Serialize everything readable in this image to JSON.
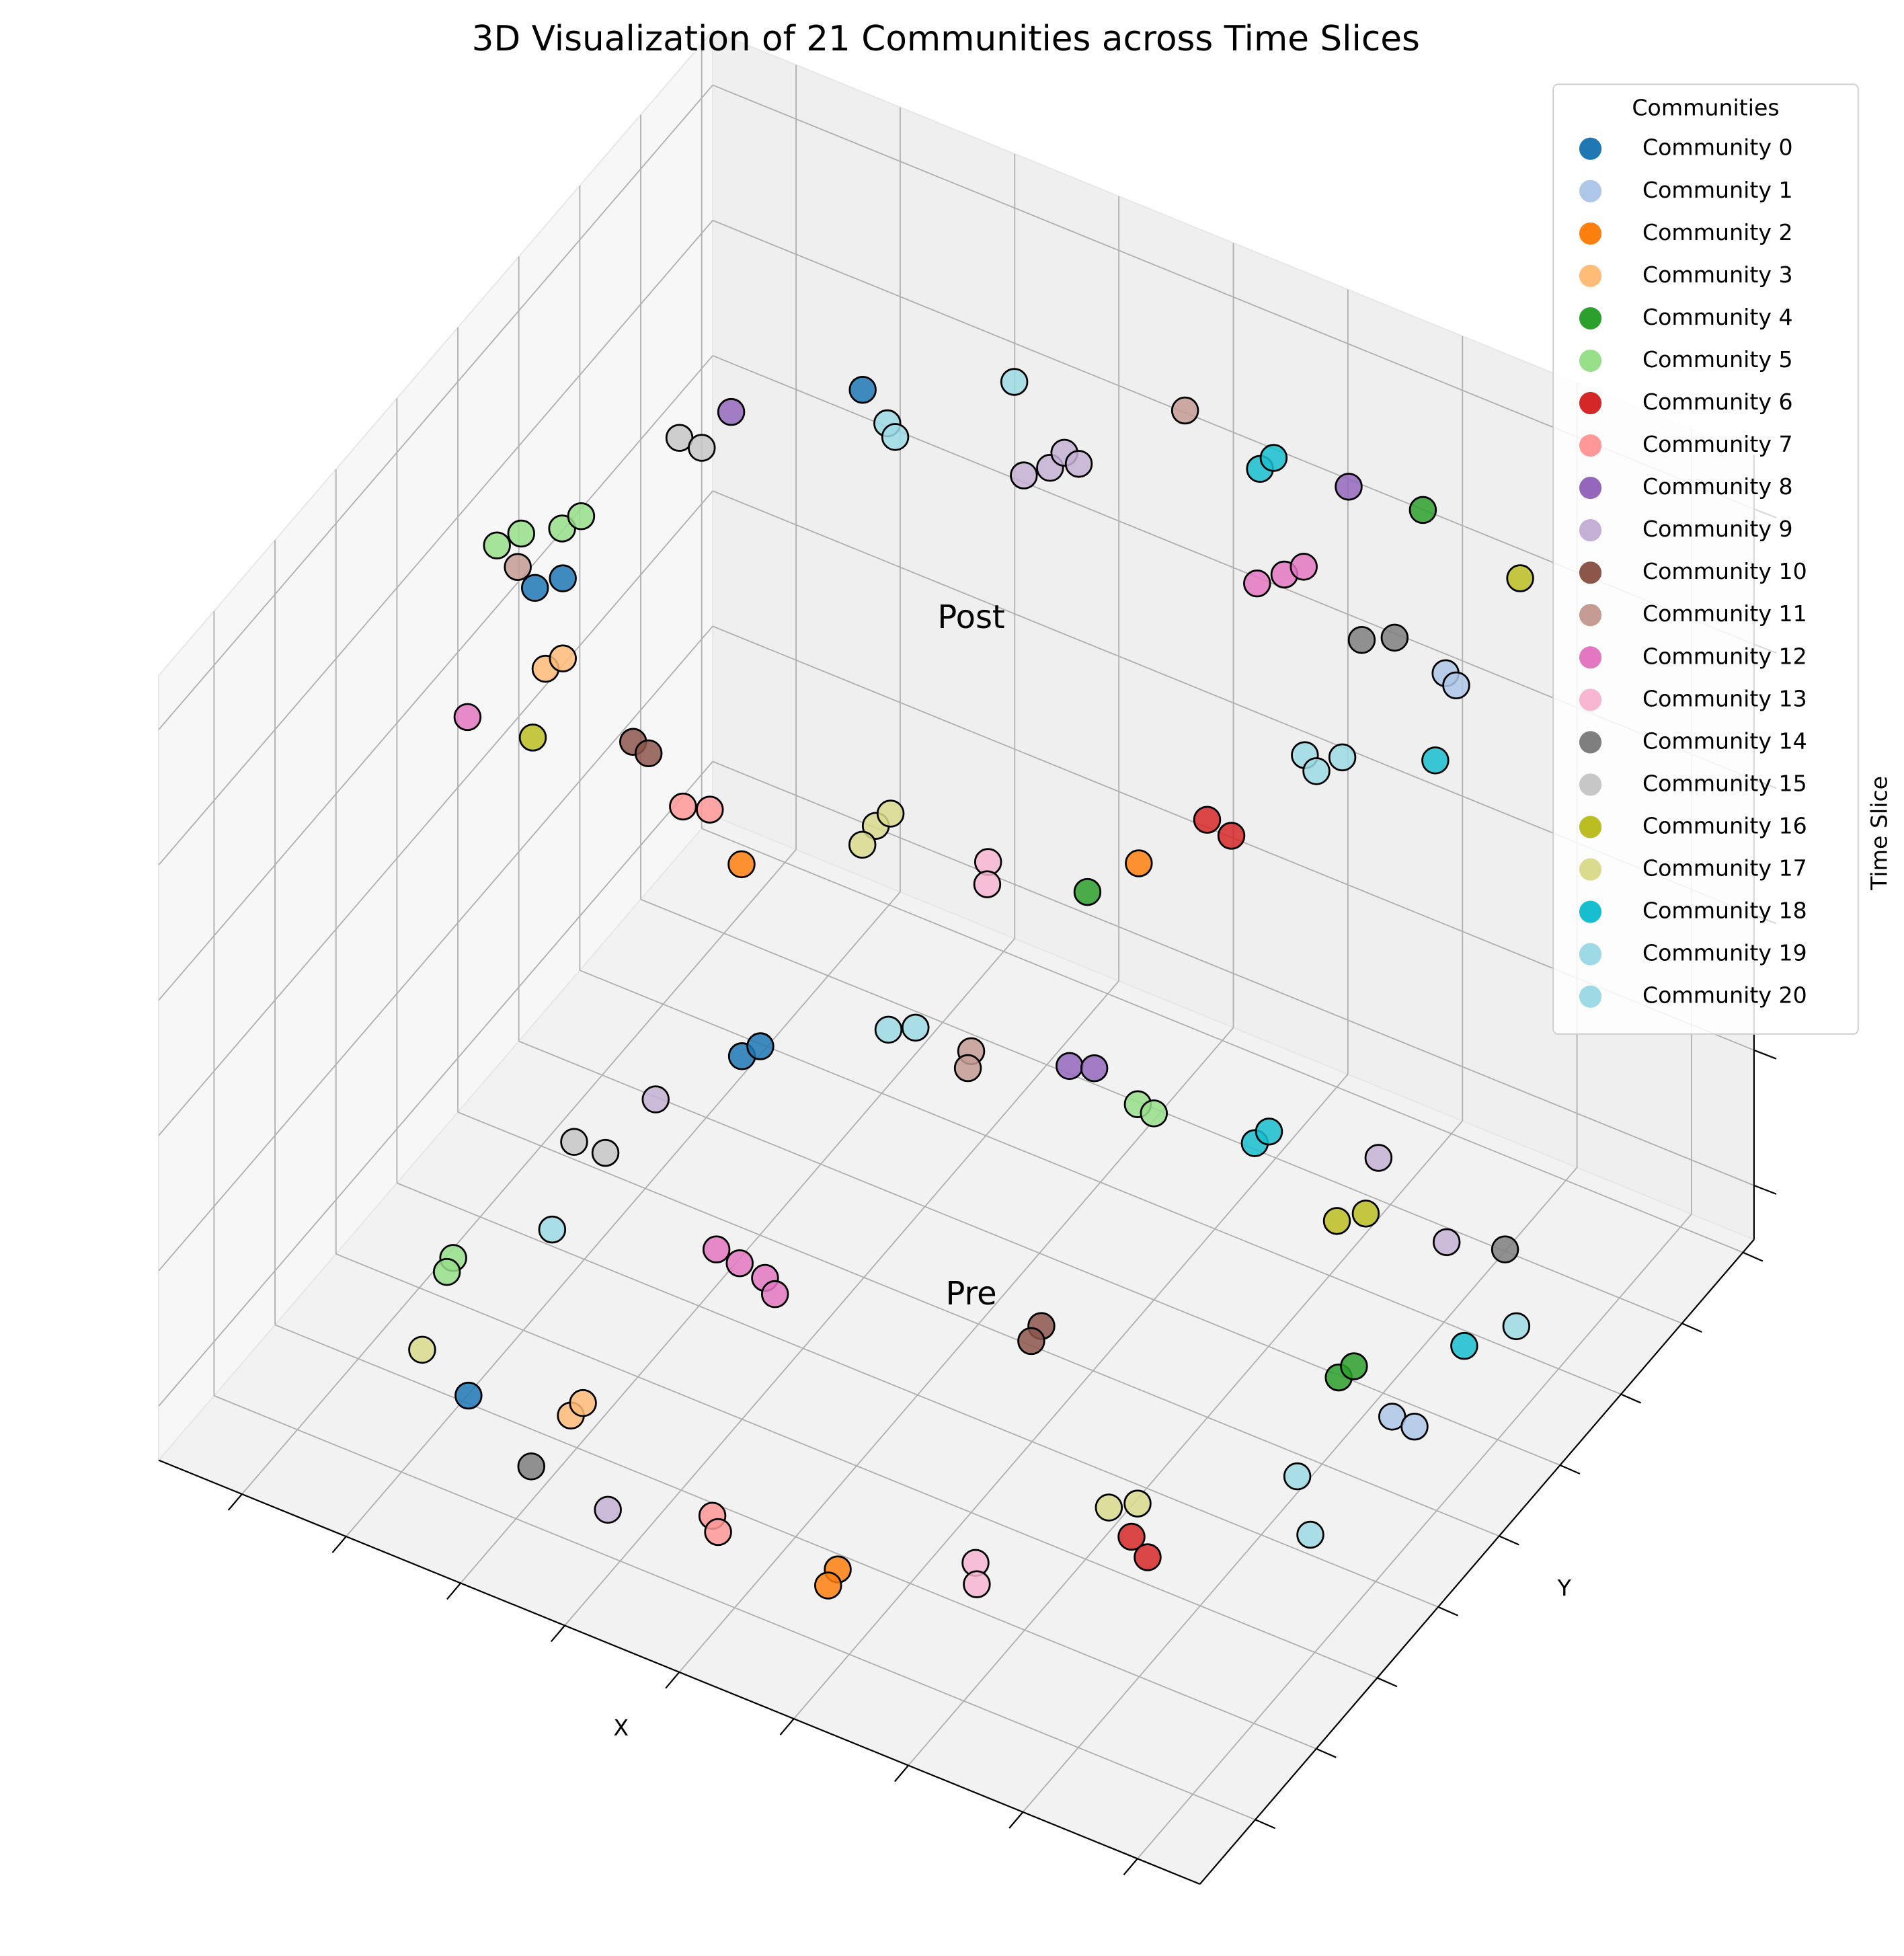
{
  "chart_data": {
    "type": "scatter3d",
    "title": "3D Visualization of 21 Communities across Time Slices",
    "xlabel": "X",
    "ylabel": "Y",
    "zlabel": "Time Slice",
    "xlim": [
      0,
      10
    ],
    "ylim": [
      0,
      10
    ],
    "zlim": [
      -0.08,
      1.08
    ],
    "xticks": [
      0.8,
      1.8,
      2.9,
      3.9,
      5.0,
      6.1,
      7.2,
      8.3,
      9.4
    ],
    "yticks": [
      1,
      2.1,
      3.2,
      4.3,
      5.4,
      6.5,
      7.6,
      8.7,
      9.8
    ],
    "zticks": [
      0,
      0.2,
      0.4,
      0.6,
      0.8,
      1
    ],
    "grid": true,
    "legend": {
      "title": "Communities",
      "loc": "upper right"
    },
    "annotations": [
      {
        "text": "Pre",
        "x": 5,
        "y": 5,
        "z": 0
      },
      {
        "text": "Post",
        "x": 5,
        "y": 5,
        "z": 1
      }
    ],
    "series": [
      {
        "name": "Community 0",
        "color": "#1f77b4",
        "x": [
          2.93,
          1.81,
          1.95,
          2.01,
          2.08,
          2.14
        ],
        "y": [
          7.2,
          3.39,
          3.63,
          6.75,
          6.95,
          1.57
        ],
        "z": [
          1,
          1,
          1,
          0,
          0,
          0
        ]
      },
      {
        "name": "Community 1",
        "color": "#aec7e8",
        "x": [
          8.81,
          8.96,
          8.84,
          9.06
        ],
        "y": [
          6.67,
          6.58,
          5.65,
          5.64
        ],
        "z": [
          1,
          1,
          0,
          0
        ]
      },
      {
        "name": "Community 2",
        "color": "#ff7f0e",
        "x": [
          4.97,
          7.79,
          5.83,
          5.86
        ],
        "y": [
          1.18,
          3.05,
          1.3,
          1.07
        ],
        "z": [
          1,
          1,
          0,
          0
        ]
      },
      {
        "name": "Community 3",
        "color": "#ffbb78",
        "x": [
          2.38,
          2.44,
          2.99,
          3.0
        ],
        "y": [
          2.51,
          2.71,
          1.82,
          2.02
        ],
        "z": [
          1,
          1,
          0,
          0
        ]
      },
      {
        "name": "Community 4",
        "color": "#2ca02c",
        "x": [
          7.65,
          7.6,
          8.22,
          8.26
        ],
        "y": [
          8.44,
          2.48,
          5.85,
          6.05
        ],
        "z": [
          1,
          1,
          0,
          0
        ]
      },
      {
        "name": "Community 5",
        "color": "#98df8a",
        "x": [
          1.28,
          1.38,
          1.64,
          1.7,
          5.12,
          5.29,
          1.19,
          1.23
        ],
        "y": [
          3.7,
          3.95,
          4.2,
          4.43,
          8.05,
          8.02,
          3.08,
          2.89
        ],
        "z": [
          1,
          1,
          1,
          1,
          0,
          0,
          0,
          0
        ]
      },
      {
        "name": "Community 6",
        "color": "#d62728",
        "x": [
          8.01,
          8.28,
          7.72,
          7.96
        ],
        "y": [
          3.87,
          3.8,
          3.05,
          2.89
        ],
        "z": [
          1,
          1,
          0,
          0
        ]
      },
      {
        "name": "Community 7",
        "color": "#ff9896",
        "x": [
          4.2,
          4.41,
          4.61,
          4.75
        ],
        "y": [
          1.57,
          1.66,
          1.33,
          1.17
        ],
        "z": [
          1,
          1,
          0,
          0
        ]
      },
      {
        "name": "Community 8",
        "color": "#9467bd",
        "x": [
          2.13,
          6.98,
          4.4,
          4.59
        ],
        "y": [
          6.33,
          8.36,
          8.17,
          8.26
        ],
        "z": [
          1,
          1,
          0,
          0
        ]
      },
      {
        "name": "Community 9",
        "color": "#c5b0d5",
        "x": [
          4.6,
          4.74,
          4.75,
          4.92,
          1.66,
          7.16,
          8.16,
          3.83
        ],
        "y": [
          6.97,
          7.18,
          7.42,
          7.36,
          5.85,
          8.56,
          7.91,
          0.91
        ],
        "z": [
          1,
          1,
          1,
          1,
          0,
          0,
          0,
          0
        ]
      },
      {
        "name": "Community 10",
        "color": "#8c564b",
        "x": [
          3.45,
          3.63,
          5.79,
          5.81
        ],
        "y": [
          2.08,
          2.02,
          5.05,
          4.83
        ],
        "z": [
          1,
          1,
          0,
          0
        ]
      },
      {
        "name": "Community 11",
        "color": "#c49c94",
        "x": [
          5.35,
          1.56,
          3.61,
          3.69
        ],
        "y": [
          8.47,
          3.55,
          7.88,
          7.67
        ],
        "z": [
          1,
          1,
          0,
          0
        ]
      },
      {
        "name": "Community 12",
        "color": "#e377c2",
        "x": [
          6.92,
          7.06,
          7.15,
          2.12,
          3.01,
          3.26,
          3.53,
          3.7
        ],
        "y": [
          6.82,
          7.05,
          7.23,
          1.59,
          4.41,
          4.36,
          4.31,
          4.17
        ],
        "z": [
          1,
          1,
          1,
          1,
          0,
          0,
          0,
          0
        ]
      },
      {
        "name": "Community 13",
        "color": "#f7b6d2",
        "x": [
          6.71,
          6.84,
          6.77,
          6.91
        ],
        "y": [
          2.36,
          2.1,
          2.02,
          1.78
        ],
        "z": [
          1,
          1,
          0,
          0
        ]
      },
      {
        "name": "Community 14",
        "color": "#7f7f7f",
        "x": [
          8.01,
          8.23,
          8.62,
          3.02
        ],
        "y": [
          6.66,
          6.84,
          8.1,
          1.05
        ],
        "z": [
          1,
          1,
          0,
          0
        ]
      },
      {
        "name": "Community 15",
        "color": "#c7c7c7",
        "x": [
          1.92,
          2.14,
          1.34,
          1.63
        ],
        "y": [
          5.79,
          5.78,
          4.98,
          5.0
        ],
        "z": [
          1,
          1,
          0,
          0
        ]
      },
      {
        "name": "Community 16",
        "color": "#bcbd22",
        "x": [
          8.76,
          2.71,
          7.25,
          7.41
        ],
        "y": [
          8.11,
          1.66,
          7.64,
          7.86
        ],
        "z": [
          1,
          1,
          0,
          0
        ]
      },
      {
        "name": "Community 17",
        "color": "#dbdb8d",
        "x": [
          5.69,
          5.72,
          5.71,
          1.53,
          7.38,
          7.56
        ],
        "y": [
          2.25,
          2.46,
          1.97,
          1.88,
          3.28,
          3.46
        ],
        "z": [
          1,
          1,
          1,
          0,
          0,
          0
        ]
      },
      {
        "name": "Community 18",
        "color": "#17becf",
        "x": [
          6.24,
          6.27,
          9.27,
          6.19,
          6.22,
          8.92
        ],
        "y": [
          8.15,
          8.34,
          5.62,
          8.15,
          8.35,
          6.8
        ],
        "z": [
          1,
          1,
          1,
          0,
          0,
          0
        ]
      },
      {
        "name": "Community 19",
        "color": "#9edae5",
        "x": [
          3.96,
          3.31,
          3.45,
          2.89,
          3.07,
          1.72
        ],
        "y": [
          8.0,
          6.93,
          6.81,
          7.74,
          7.89,
          3.87
        ],
        "z": [
          1,
          1,
          1,
          0,
          0,
          0
        ]
      },
      {
        "name": "Community 20",
        "color": "#9edae5",
        "x": [
          8.31,
          8.49,
          8.59,
          9.17,
          8.53,
          8.98
        ],
        "y": [
          5.07,
          4.94,
          5.22,
          7.27,
          4.52,
          3.91
        ],
        "z": [
          1,
          1,
          1,
          0,
          0,
          0
        ]
      }
    ]
  }
}
